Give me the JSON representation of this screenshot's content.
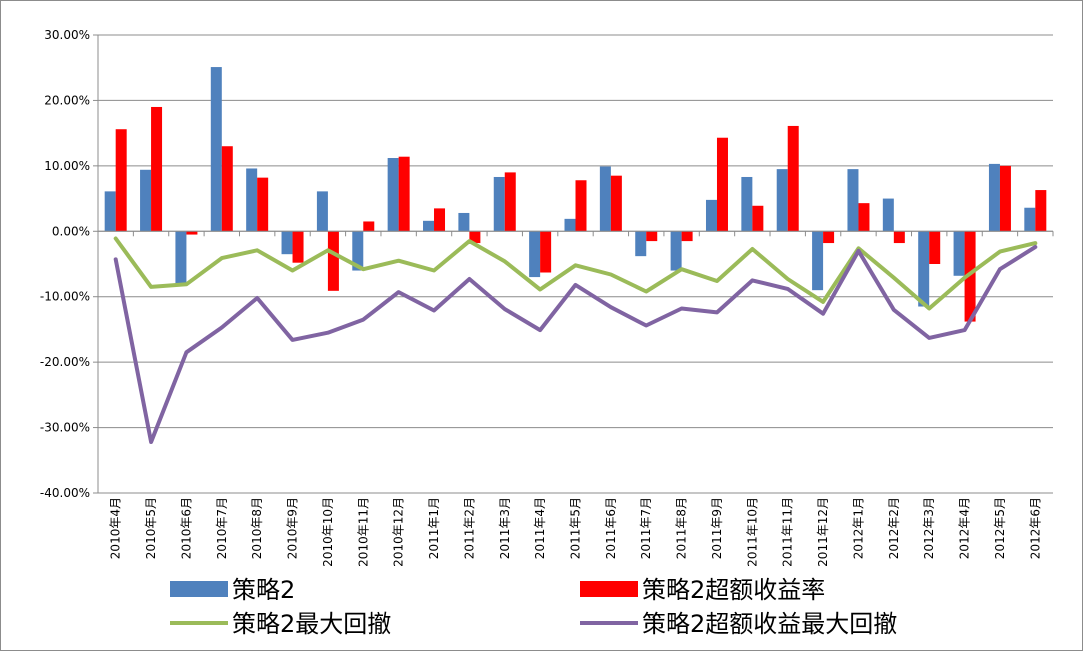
{
  "chart_data": {
    "type": "bar",
    "title": "",
    "xlabel": "",
    "ylabel": "",
    "ylim": [
      -0.4,
      0.3
    ],
    "yticks": [
      0.3,
      0.2,
      0.1,
      0.0,
      -0.1,
      -0.2,
      -0.3,
      -0.4
    ],
    "ytick_labels": [
      "30.00%",
      "20.00%",
      "10.00%",
      "0.00%",
      "-10.00%",
      "-20.00%",
      "-30.00%",
      "-40.00%"
    ],
    "grid": true,
    "legend_position": "bottom",
    "categories": [
      "2010年4月",
      "2010年5月",
      "2010年6月",
      "2010年7月",
      "2010年8月",
      "2010年9月",
      "2010年10月",
      "2010年11月",
      "2010年12月",
      "2011年1月",
      "2011年2月",
      "2011年3月",
      "2011年4月",
      "2011年5月",
      "2011年6月",
      "2011年7月",
      "2011年8月",
      "2011年9月",
      "2011年10月",
      "2011年11月",
      "2011年12月",
      "2012年1月",
      "2012年2月",
      "2012年3月",
      "2012年4月",
      "2012年5月",
      "2012年6月"
    ],
    "series": [
      {
        "name": "策略2",
        "kind": "bar",
        "color": "#4f81bd",
        "values": [
          0.061,
          0.094,
          -0.08,
          0.251,
          0.096,
          -0.035,
          0.061,
          -0.06,
          0.112,
          0.016,
          0.028,
          0.083,
          -0.07,
          0.019,
          0.099,
          -0.038,
          -0.06,
          0.048,
          0.083,
          0.095,
          -0.09,
          0.095,
          0.05,
          -0.115,
          -0.068,
          0.103,
          0.036
        ]
      },
      {
        "name": "策略2超额收益率",
        "kind": "bar",
        "color": "#ff0000",
        "values": [
          0.156,
          0.19,
          -0.005,
          0.13,
          0.082,
          -0.048,
          -0.091,
          0.015,
          0.114,
          0.035,
          -0.018,
          0.09,
          -0.063,
          0.078,
          0.085,
          -0.015,
          -0.015,
          0.143,
          0.039,
          0.161,
          -0.018,
          0.043,
          -0.018,
          -0.05,
          -0.138,
          0.1,
          0.063
        ]
      },
      {
        "name": "策略2最大回撤",
        "kind": "line",
        "color": "#9bbb59",
        "values": [
          -0.011,
          -0.085,
          -0.081,
          -0.041,
          -0.029,
          -0.06,
          -0.029,
          -0.058,
          -0.045,
          -0.06,
          -0.015,
          -0.046,
          -0.089,
          -0.052,
          -0.066,
          -0.092,
          -0.058,
          -0.076,
          -0.027,
          -0.073,
          -0.108,
          -0.026,
          -0.071,
          -0.118,
          -0.071,
          -0.031,
          -0.018
        ]
      },
      {
        "name": "策略2超额收益最大回撤",
        "kind": "line",
        "color": "#8064a2",
        "values": [
          -0.043,
          -0.322,
          -0.185,
          -0.147,
          -0.102,
          -0.166,
          -0.155,
          -0.135,
          -0.093,
          -0.121,
          -0.073,
          -0.119,
          -0.151,
          -0.082,
          -0.116,
          -0.144,
          -0.118,
          -0.124,
          -0.075,
          -0.088,
          -0.126,
          -0.03,
          -0.12,
          -0.163,
          -0.151,
          -0.058,
          -0.024
        ]
      }
    ]
  }
}
